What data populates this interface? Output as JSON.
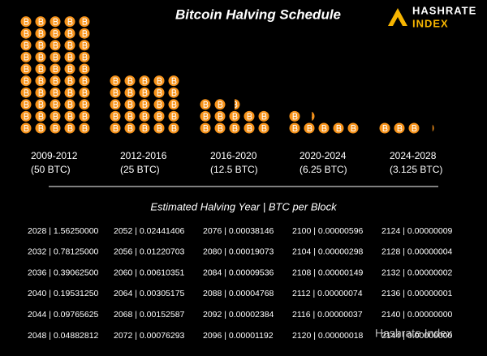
{
  "chart_data": {
    "type": "coins",
    "title": "Bitcoin Halving Schedule",
    "brand": [
      "HASHRATE",
      "INDEX"
    ],
    "categories": [
      "2009-2012",
      "2012-2016",
      "2016-2020",
      "2020-2024",
      "2024-2028"
    ],
    "values": [
      50,
      25,
      12.5,
      6.25,
      3.125
    ],
    "value_labels": [
      "(50 BTC)",
      "(25 BTC)",
      "(12.5 BTC)",
      "(6.25 BTC)",
      "(3.125 BTC)"
    ],
    "color": "#f7931a",
    "coins_per_row": 5
  },
  "table": {
    "title": "Estimated Halving Year | BTC per Block",
    "rows": [
      [
        "2028 | 1.56250000",
        "2052 | 0.02441406",
        "2076 | 0.00038146",
        "2100 | 0.00000596",
        "2124 | 0.00000009"
      ],
      [
        "2032 | 0.78125000",
        "2056 | 0.01220703",
        "2080 | 0.00019073",
        "2104 | 0.00000298",
        "2128 | 0.00000004"
      ],
      [
        "2036 | 0.39062500",
        "2060 | 0.00610351",
        "2084 | 0.00009536",
        "2108 | 0.00000149",
        "2132 | 0.00000002"
      ],
      [
        "2040 | 0.19531250",
        "2064 | 0.00305175",
        "2088 | 0.00004768",
        "2112 | 0.00000074",
        "2136 | 0.00000001"
      ],
      [
        "2044 | 0.09765625",
        "2068 | 0.00152587",
        "2092 | 0.00002384",
        "2116 | 0.00000037",
        "2140 | 0.00000000"
      ],
      [
        "2048 | 0.04882812",
        "2072 | 0.00076293",
        "2096 | 0.00001192",
        "2120 | 0.00000018",
        "2144 | 0.00000000"
      ]
    ]
  },
  "watermark": "Hashrate Index"
}
